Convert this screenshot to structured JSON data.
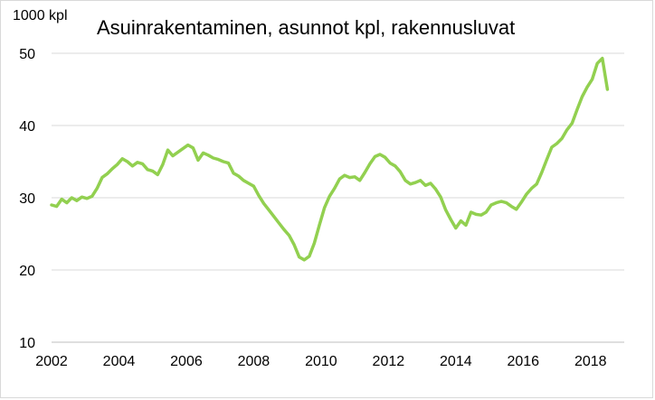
{
  "chart_data": {
    "type": "line",
    "title": "Asuinrakentaminen, asunnot kpl, rakennusluvat",
    "ylabel": "1000 kpl",
    "xlabel": "",
    "ylim": [
      10,
      50
    ],
    "yticks": [
      10,
      20,
      30,
      40,
      50
    ],
    "xlim": [
      2002,
      2019
    ],
    "xticks": [
      2002,
      2004,
      2006,
      2008,
      2010,
      2012,
      2014,
      2016,
      2018
    ],
    "grid": "horizontal",
    "legend": "none",
    "line_color": "#92d050",
    "series": [
      {
        "x": [
          2002.0,
          2002.15,
          2002.3,
          2002.45,
          2002.6,
          2002.75,
          2002.9,
          2003.05,
          2003.2,
          2003.35,
          2003.5,
          2003.65,
          2003.8,
          2003.95,
          2004.1,
          2004.25,
          2004.4,
          2004.55,
          2004.7,
          2004.85,
          2005.0,
          2005.15,
          2005.3,
          2005.45,
          2005.6,
          2005.75,
          2005.9,
          2006.05,
          2006.2,
          2006.35,
          2006.5,
          2006.65,
          2006.8,
          2006.95,
          2007.1,
          2007.25,
          2007.4,
          2007.55,
          2007.7,
          2007.85,
          2008.0,
          2008.15,
          2008.3,
          2008.45,
          2008.6,
          2008.75,
          2008.9,
          2009.05,
          2009.2,
          2009.35,
          2009.5,
          2009.65,
          2009.8,
          2009.95,
          2010.1,
          2010.25,
          2010.4,
          2010.55,
          2010.7,
          2010.85,
          2011.0,
          2011.15,
          2011.3,
          2011.45,
          2011.6,
          2011.75,
          2011.9,
          2012.05,
          2012.2,
          2012.35,
          2012.5,
          2012.65,
          2012.8,
          2012.95,
          2013.1,
          2013.25,
          2013.4,
          2013.55,
          2013.7,
          2013.85,
          2014.0,
          2014.15,
          2014.3,
          2014.45,
          2014.6,
          2014.75,
          2014.9,
          2015.05,
          2015.2,
          2015.35,
          2015.5,
          2015.65,
          2015.8,
          2015.95,
          2016.1,
          2016.25,
          2016.4,
          2016.55,
          2016.7,
          2016.85,
          2017.0,
          2017.15,
          2017.3,
          2017.45,
          2017.6,
          2017.75,
          2017.9,
          2018.05,
          2018.2,
          2018.35,
          2018.5
        ],
        "values": [
          29.0,
          28.8,
          29.8,
          29.3,
          30.0,
          29.6,
          30.1,
          29.9,
          30.2,
          31.3,
          32.8,
          33.3,
          34.0,
          34.6,
          35.4,
          35.0,
          34.4,
          34.9,
          34.7,
          33.9,
          33.7,
          33.2,
          34.6,
          36.6,
          35.8,
          36.3,
          36.8,
          37.3,
          36.9,
          35.2,
          36.2,
          35.9,
          35.5,
          35.3,
          35.0,
          34.8,
          33.4,
          33.0,
          32.4,
          32.0,
          31.6,
          30.3,
          29.2,
          28.3,
          27.4,
          26.5,
          25.6,
          24.8,
          23.5,
          21.8,
          21.4,
          21.9,
          23.7,
          26.2,
          28.6,
          30.2,
          31.3,
          32.6,
          33.1,
          32.8,
          32.9,
          32.4,
          33.5,
          34.7,
          35.7,
          36.0,
          35.6,
          34.8,
          34.4,
          33.6,
          32.4,
          31.9,
          32.1,
          32.4,
          31.7,
          32.0,
          31.2,
          30.1,
          28.3,
          27.0,
          25.8,
          26.8,
          26.2,
          28.0,
          27.7,
          27.6,
          28.0,
          29.0,
          29.3,
          29.5,
          29.3,
          28.8,
          28.4,
          29.4,
          30.5,
          31.3,
          31.9,
          33.5,
          35.3,
          37.0,
          37.5,
          38.2,
          39.4,
          40.3,
          42.2,
          44.0,
          45.3,
          46.4,
          48.6,
          49.3,
          45.0
        ]
      }
    ]
  }
}
